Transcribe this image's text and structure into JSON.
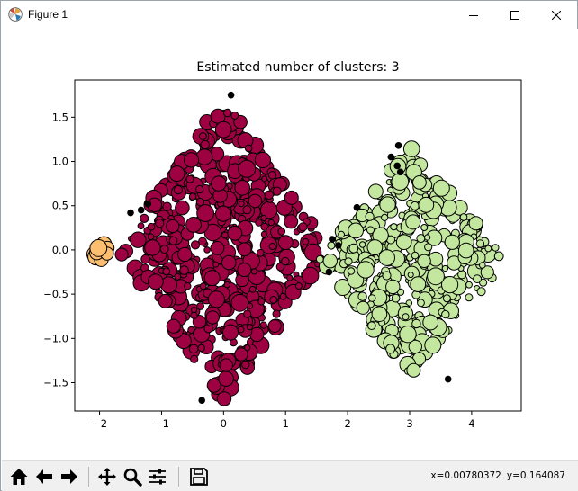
{
  "window": {
    "title": "Figure 1"
  },
  "colors": {
    "cluster_0": "#9e0142",
    "cluster_1": "#c3e79e",
    "cluster_2": "#fdbf6f",
    "noise": "#000000",
    "edge": "#000000"
  },
  "toolbar": {
    "icons": [
      "home-icon",
      "back-icon",
      "forward-icon",
      "pan-icon",
      "zoom-icon",
      "configure-subplots-icon",
      "save-icon"
    ],
    "coords_x": "x=0.00780372",
    "coords_y": "y=0.164087"
  },
  "chart_data": {
    "type": "scatter",
    "title": "Estimated number of clusters: 3",
    "xlabel": "",
    "ylabel": "",
    "xlim": [
      -2.4,
      4.8
    ],
    "ylim": [
      -1.82,
      1.92
    ],
    "xticks": [
      -2,
      -1,
      0,
      1,
      2,
      3,
      4
    ],
    "xtick_labels": [
      "−2",
      "−1",
      "0",
      "1",
      "2",
      "3",
      "4"
    ],
    "yticks": [
      -1.5,
      -1.0,
      -0.5,
      0.0,
      0.5,
      1.0,
      1.5
    ],
    "ytick_labels": [
      "−1.5",
      "−1.0",
      "−0.5",
      "0.0",
      "0.5",
      "1.0",
      "1.5"
    ],
    "grid": false,
    "series": [
      {
        "cluster": 0,
        "color": "#9e0142",
        "shape": "diamond",
        "center": [
          0.0,
          0.0
        ],
        "radius_x": 1.72,
        "radius_y": 1.72,
        "rotation_deg": 0,
        "point_count": 520
      },
      {
        "cluster": 1,
        "color": "#c3e79e",
        "shape": "diamond",
        "center": [
          3.05,
          -0.12
        ],
        "radius_x": 1.52,
        "radius_y": 1.33,
        "point_count": 360
      },
      {
        "cluster": 2,
        "color": "#fdbf6f",
        "shape": "blob",
        "center": [
          -1.98,
          -0.01
        ],
        "radius_x": 0.12,
        "radius_y": 0.12,
        "point_count": 10
      }
    ],
    "noise_points": [
      [
        -1.22,
        0.52
      ],
      [
        -1.33,
        0.45
      ],
      [
        -1.5,
        0.42
      ],
      [
        1.75,
        0.12
      ],
      [
        1.85,
        0.05
      ],
      [
        2.15,
        0.48
      ],
      [
        2.7,
        1.05
      ],
      [
        2.8,
        0.95
      ],
      [
        2.82,
        1.18
      ],
      [
        3.62,
        -1.46
      ],
      [
        1.7,
        -0.25
      ],
      [
        -0.35,
        -1.7
      ],
      [
        0.12,
        1.75
      ],
      [
        2.85,
        0.88
      ]
    ]
  }
}
